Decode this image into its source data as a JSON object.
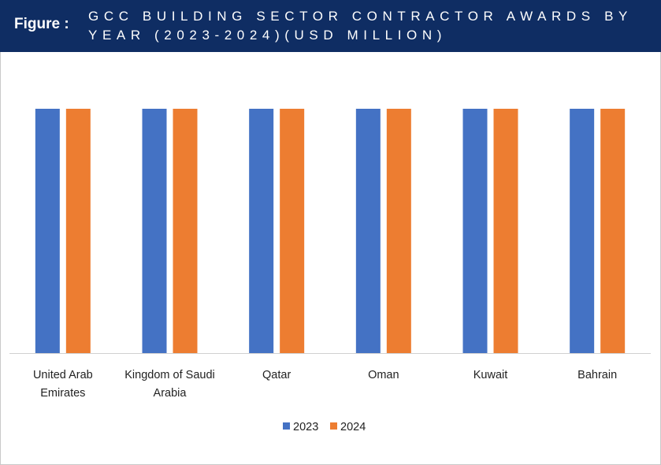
{
  "header": {
    "figure_label": "Figure :",
    "title": "GCC BUILDING SECTOR CONTRACTOR AWARDS BY YEAR (2023-2024)(USD MILLION)"
  },
  "colors": {
    "header_bg": "#0f2d63",
    "series_2023": "#4472c4",
    "series_2024": "#ed7d31"
  },
  "chart_data": {
    "type": "bar",
    "title": "GCC BUILDING SECTOR CONTRACTOR AWARDS BY YEAR (2023-2024)(USD MILLION)",
    "categories": [
      [
        "United Arab",
        "Emirates"
      ],
      [
        "Kingdom of Saudi",
        "Arabia"
      ],
      [
        "Qatar"
      ],
      [
        "Oman"
      ],
      [
        "Kuwait"
      ],
      [
        "Bahrain"
      ]
    ],
    "series": [
      {
        "name": "2023",
        "color": "#4472c4",
        "values": [
          1,
          1,
          1,
          1,
          1,
          1
        ]
      },
      {
        "name": "2024",
        "color": "#ed7d31",
        "values": [
          1,
          1,
          1,
          1,
          1,
          1
        ]
      }
    ],
    "ylim": [
      0,
      1
    ],
    "grid": false,
    "legend": "bottom"
  }
}
